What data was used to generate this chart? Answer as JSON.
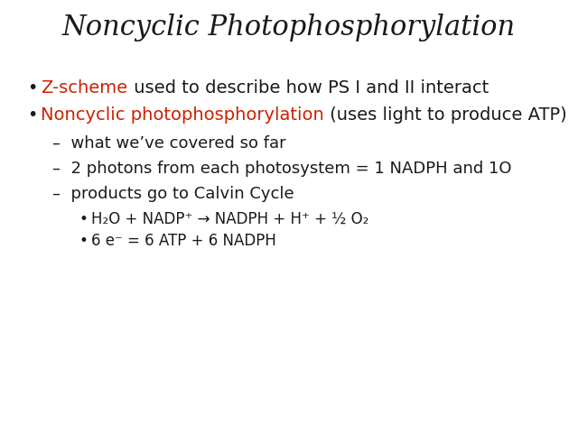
{
  "title": "Noncyclic Photophosphorylation",
  "title_fontsize": 22,
  "background_color": "#ffffff",
  "text_color": "#1a1a1a",
  "red_color": "#cc2200",
  "bullet1_red": "Z-scheme",
  "bullet1_black": " used to describe how PS I and II interact",
  "bullet2_red": "Noncyclic photophosphorylation",
  "bullet2_black": " (uses light to produce ATP)",
  "dash1": "–  what we’ve covered so far",
  "dash2": "–  2 photons from each photosystem = 1 NADPH and 1O",
  "dash3": "–  products go to Calvin Cycle",
  "sub1_str": "H₂O + NADP⁺ → NADPH + H⁺ + ½ O₂",
  "sub2_str": "6 e⁻ = 6 ATP + 6 NADPH",
  "fontsize_bullet": 14,
  "fontsize_dash": 13,
  "fontsize_sub": 12
}
